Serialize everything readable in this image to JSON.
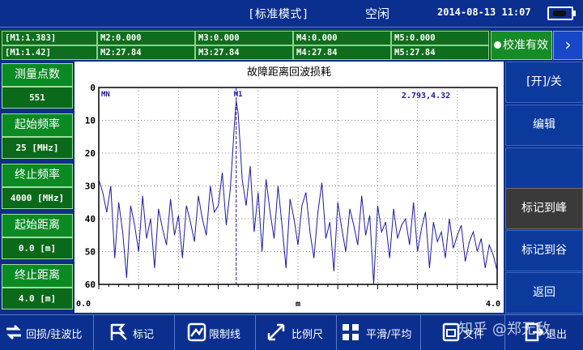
{
  "status": {
    "mode": "[标准模式]",
    "state": "空闲",
    "datetime": "2014-08-13 11:07"
  },
  "markers": {
    "row1": [
      "[M1:1.383]",
      "M2:0.000",
      "M3:0.000",
      "M4:0.000",
      "M5:0.000"
    ],
    "row2": [
      "[M1:1.42]",
      "M2:27.84",
      "M3:27.84",
      "M4:27.84",
      "M5:27.84"
    ],
    "calibration": "校准有效",
    "next": "›"
  },
  "params": [
    {
      "label": "测量点数",
      "value": "551"
    },
    {
      "label": "起始频率",
      "value": "25 [MHz]"
    },
    {
      "label": "终止频率",
      "value": "4000 [MHz]"
    },
    {
      "label": "起始距离",
      "value": "0.0 [m]"
    },
    {
      "label": "终止距离",
      "value": "4.0 [m]"
    }
  ],
  "softkeys": [
    "[开]/关",
    "编辑",
    "",
    "",
    "标记到峰",
    "标记到谷",
    "返回"
  ],
  "toolbar": [
    "回损/驻波比",
    "标记",
    "限制线",
    "比例尺",
    "平滑/平均",
    "文件",
    "退出"
  ],
  "watermark": "知乎 @郑无敌",
  "chart_data": {
    "type": "line",
    "title": "故障距离回波损耗",
    "xlabel": "m",
    "ylabel": "",
    "xlim": [
      0.0,
      4.0
    ],
    "ylim": [
      60,
      0
    ],
    "y_inverted": true,
    "x_tick_labels": [
      "0.0",
      "4.0"
    ],
    "y_ticks": [
      0,
      10,
      20,
      30,
      40,
      50,
      60
    ],
    "grid": true,
    "grid_style": "dotted",
    "marker_labels": [
      "MN",
      "M1"
    ],
    "marker_readout": "2.793,4.32",
    "marker_x": 1.38,
    "series": [
      {
        "color": "#1a1aa0",
        "x": [
          0.0,
          0.04,
          0.08,
          0.12,
          0.16,
          0.2,
          0.24,
          0.28,
          0.32,
          0.36,
          0.4,
          0.44,
          0.48,
          0.52,
          0.56,
          0.6,
          0.64,
          0.68,
          0.72,
          0.76,
          0.8,
          0.84,
          0.88,
          0.92,
          0.96,
          1.0,
          1.04,
          1.08,
          1.12,
          1.16,
          1.2,
          1.24,
          1.28,
          1.32,
          1.34,
          1.36,
          1.38,
          1.4,
          1.42,
          1.44,
          1.48,
          1.52,
          1.56,
          1.6,
          1.64,
          1.68,
          1.72,
          1.76,
          1.8,
          1.84,
          1.88,
          1.92,
          1.96,
          2.0,
          2.04,
          2.08,
          2.12,
          2.16,
          2.2,
          2.24,
          2.28,
          2.32,
          2.36,
          2.4,
          2.44,
          2.48,
          2.52,
          2.56,
          2.6,
          2.64,
          2.68,
          2.72,
          2.76,
          2.8,
          2.84,
          2.88,
          2.92,
          2.96,
          3.0,
          3.04,
          3.08,
          3.12,
          3.16,
          3.2,
          3.24,
          3.28,
          3.32,
          3.36,
          3.4,
          3.44,
          3.48,
          3.52,
          3.56,
          3.6,
          3.64,
          3.68,
          3.72,
          3.76,
          3.8,
          3.84,
          3.88,
          3.92,
          3.96,
          4.0
        ],
        "y": [
          28,
          32,
          38,
          30,
          52,
          35,
          44,
          58,
          36,
          42,
          50,
          33,
          46,
          40,
          55,
          37,
          43,
          48,
          34,
          45,
          39,
          52,
          36,
          41,
          47,
          33,
          40,
          45,
          30,
          38,
          36,
          26,
          42,
          31,
          22,
          12,
          4,
          8,
          18,
          28,
          36,
          24,
          44,
          32,
          50,
          28,
          38,
          46,
          30,
          42,
          55,
          34,
          40,
          48,
          36,
          32,
          44,
          52,
          38,
          29,
          46,
          41,
          56,
          35,
          43,
          50,
          37,
          42,
          48,
          33,
          45,
          39,
          60,
          36,
          44,
          41,
          52,
          37,
          46,
          42,
          40,
          48,
          35,
          50,
          43,
          38,
          55,
          41,
          47,
          44,
          52,
          40,
          49,
          45,
          42,
          53,
          47,
          44,
          50,
          46,
          55,
          48,
          51,
          56
        ]
      }
    ]
  }
}
